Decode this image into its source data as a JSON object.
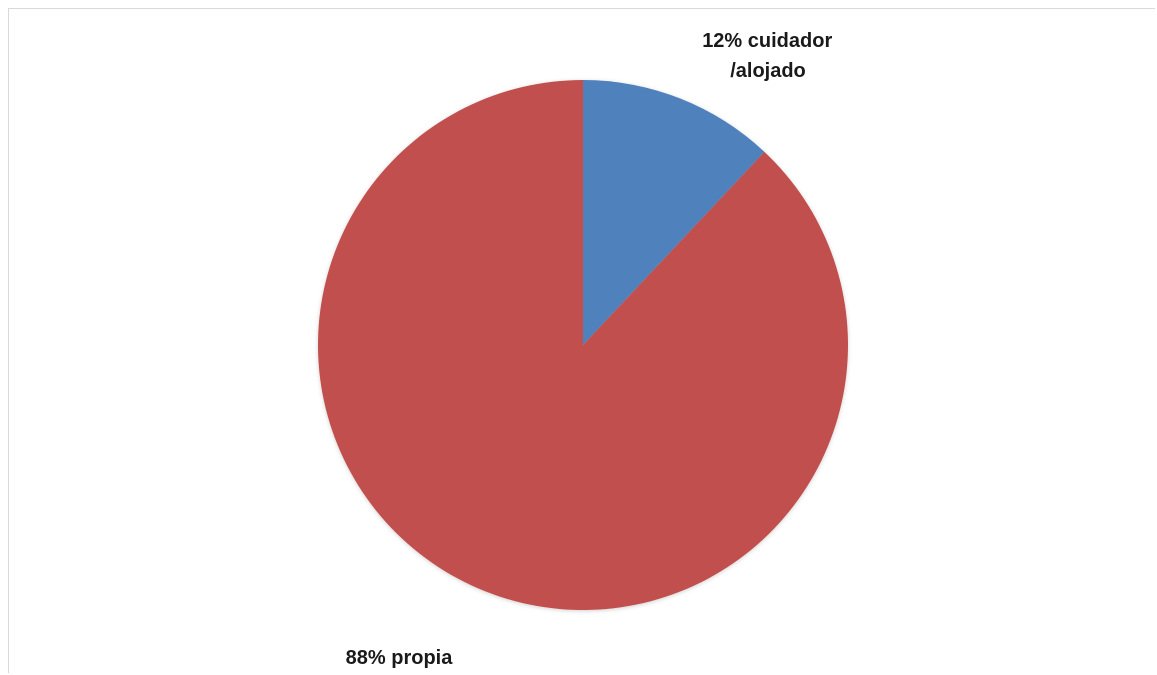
{
  "chart_data": {
    "type": "pie",
    "title": "",
    "slices": [
      {
        "label": "cuidador /alojado",
        "value": 12,
        "label_text": "12% cuidador",
        "label_text_line2": "/alojado",
        "color": "#4F81BD"
      },
      {
        "label": "propia",
        "value": 88,
        "label_text": "88% propia",
        "color": "#C0504D"
      }
    ],
    "legend": "none",
    "start_angle": "12 o'clock",
    "direction": "clockwise"
  }
}
